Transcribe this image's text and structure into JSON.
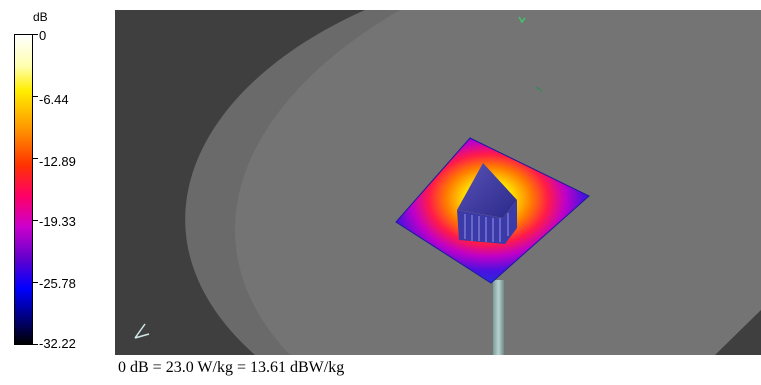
{
  "legend": {
    "unit": "dB",
    "ticks": [
      "0",
      "-6.44",
      "-12.89",
      "-19.33",
      "-25.78",
      "-32.22"
    ]
  },
  "caption": "0 dB = 23.0 W/kg = 13.61 dBW/kg"
}
